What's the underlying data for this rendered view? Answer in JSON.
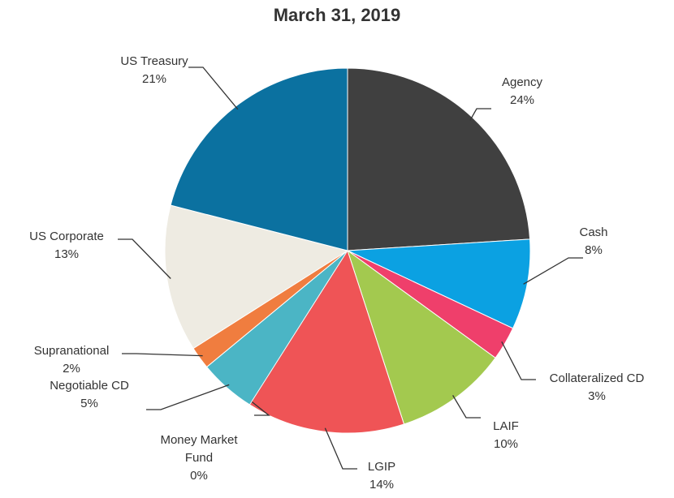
{
  "chart_data": {
    "type": "pie",
    "title": "March 31, 2019",
    "categories": [
      "Agency",
      "Cash",
      "Collateralized CD",
      "LAIF",
      "LGIP",
      "Money Market Fund",
      "Negotiable CD",
      "Supranational",
      "US Corporate",
      "US Treasury"
    ],
    "values": [
      24,
      8,
      3,
      10,
      14,
      0,
      5,
      2,
      13,
      21
    ],
    "value_labels": [
      "24%",
      "8%",
      "3%",
      "10%",
      "14%",
      "0%",
      "5%",
      "2%",
      "13%",
      "21%"
    ],
    "colors": [
      "#404040",
      "#0ba1e2",
      "#ef3f6b",
      "#a3c94f",
      "#ef5456",
      "#333333",
      "#4bb5c5",
      "#f07d3f",
      "#eeebe2",
      "#0b71a0"
    ]
  }
}
